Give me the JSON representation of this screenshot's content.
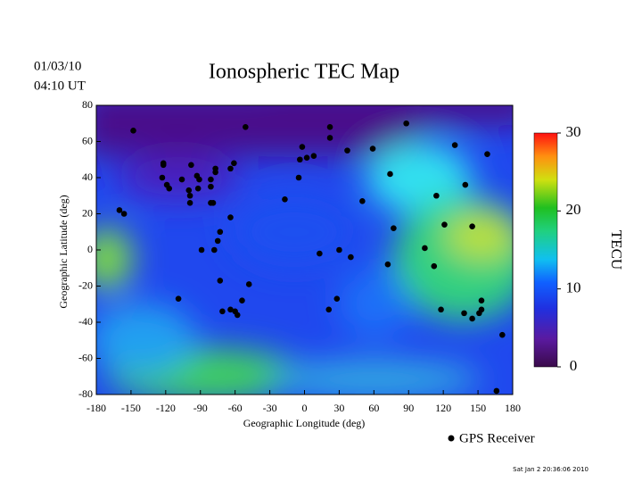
{
  "chart_data": {
    "type": "map",
    "title": "Ionospheric TEC Map",
    "date": "01/03/10",
    "time": "04:10 UT",
    "xlabel": "Geographic Longitude (deg)",
    "ylabel": "Geographic Latitude (deg)",
    "xlim": [
      -180,
      180
    ],
    "ylim": [
      -80,
      80
    ],
    "xticks": [
      -180,
      -150,
      -120,
      -90,
      -60,
      -30,
      0,
      30,
      60,
      90,
      120,
      150,
      180
    ],
    "yticks": [
      -80,
      -60,
      -40,
      -20,
      0,
      20,
      40,
      60,
      80
    ],
    "colorbar": {
      "label": "TECU",
      "lim": [
        0,
        30
      ],
      "ticks": [
        0,
        10,
        20,
        30
      ]
    },
    "series": [
      {
        "name": "GPS Receiver",
        "color": "#000000",
        "x": [
          -148,
          -122,
          -122,
          -123,
          -119,
          -117,
          -98,
          -106,
          -100,
          -99,
          -99,
          -93,
          -91,
          -92,
          -81,
          -81,
          -77,
          -77,
          -64,
          -61,
          -81,
          -79,
          -64,
          -51,
          -160,
          -156,
          -73,
          -75,
          -89,
          -78,
          -109,
          -73,
          -71,
          -64,
          -60,
          -58,
          -54,
          -48,
          -17,
          -5,
          -4,
          -2,
          2,
          8,
          22,
          22,
          37,
          59,
          88,
          13,
          30,
          40,
          50,
          74,
          77,
          72,
          28,
          21,
          114,
          121,
          104,
          112,
          118,
          130,
          139,
          145,
          158,
          138,
          145,
          151,
          153,
          153,
          171,
          166
        ],
        "y": [
          66,
          48,
          47,
          40,
          36,
          34,
          47,
          39,
          33,
          30,
          26,
          41,
          39,
          34,
          39,
          35,
          45,
          43,
          45,
          48,
          26,
          26,
          18,
          68,
          22,
          20,
          10,
          5,
          0,
          0,
          -27,
          -17,
          -34,
          -33,
          -34,
          -36,
          -28,
          -19,
          28,
          40,
          50,
          57,
          51,
          52,
          68,
          62,
          55,
          56,
          70,
          -2,
          0,
          -4,
          27,
          42,
          12,
          -8,
          -27,
          -33,
          30,
          14,
          1,
          -9,
          -33,
          58,
          36,
          13,
          53,
          -35,
          -38,
          -35,
          -33,
          -28,
          -47,
          -78
        ]
      }
    ],
    "footer": "Sat Jan  2 20:36:06 2010"
  }
}
